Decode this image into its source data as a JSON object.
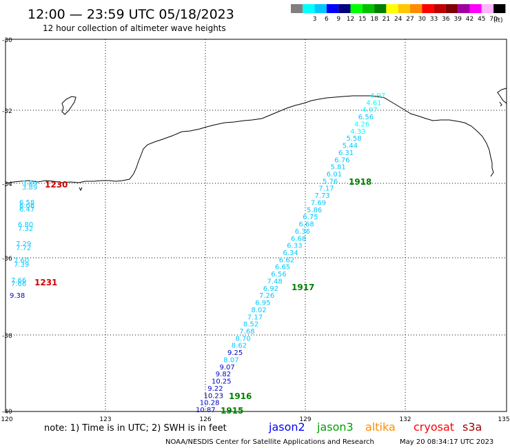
{
  "header": {
    "title": "12:00 — 23:59 UTC 05/18/2023",
    "subtitle": "12 hour collection of altimeter wave heights"
  },
  "color_scale": {
    "unit": "(ft)",
    "swatches": [
      {
        "color": "#808080",
        "label": ""
      },
      {
        "color": "#00ffff",
        "label": "3"
      },
      {
        "color": "#00c8ff",
        "label": "6"
      },
      {
        "color": "#0000ff",
        "label": "9"
      },
      {
        "color": "#000080",
        "label": "12"
      },
      {
        "color": "#00ff00",
        "label": "15"
      },
      {
        "color": "#00c000",
        "label": "18"
      },
      {
        "color": "#008000",
        "label": "21"
      },
      {
        "color": "#ffff00",
        "label": "24"
      },
      {
        "color": "#ffc800",
        "label": "27"
      },
      {
        "color": "#ff8c00",
        "label": "30"
      },
      {
        "color": "#ff0000",
        "label": "33"
      },
      {
        "color": "#c00000",
        "label": "36"
      },
      {
        "color": "#800000",
        "label": "39"
      },
      {
        "color": "#a000a0",
        "label": "42"
      },
      {
        "color": "#ff00ff",
        "label": "45"
      },
      {
        "color": "#ffb4ff",
        "label": "70"
      },
      {
        "color": "#000000",
        "label": ""
      }
    ]
  },
  "axes": {
    "lat_labels": [
      "-30",
      "-32",
      "-34",
      "-36",
      "-38",
      "-40"
    ],
    "lon_labels": [
      "120",
      "123",
      "126",
      "129",
      "132",
      "135"
    ]
  },
  "time_labels": [
    {
      "text": "1230",
      "color": "#d00000"
    },
    {
      "text": "1231",
      "color": "#d00000"
    },
    {
      "text": "1918",
      "color": "#008000"
    },
    {
      "text": "1917",
      "color": "#008000"
    },
    {
      "text": "1916",
      "color": "#008000"
    },
    {
      "text": "1915",
      "color": "#008000"
    }
  ],
  "track_a_values": [
    {
      "v": "3.89",
      "c": "#00c8ff"
    },
    {
      "v": "3.89",
      "c": "#00c8ff"
    },
    {
      "v": "6.58",
      "c": "#00c8ff"
    },
    {
      "v": "6.06",
      "c": "#00c8ff"
    },
    {
      "v": "6.47",
      "c": "#00c8ff"
    },
    {
      "v": "6.80",
      "c": "#00c8ff"
    },
    {
      "v": "7.32",
      "c": "#00c8ff"
    },
    {
      "v": "7.29",
      "c": "#00c8ff"
    },
    {
      "v": "7.72",
      "c": "#00c8ff"
    },
    {
      "v": "7.60",
      "c": "#00c8ff"
    },
    {
      "v": "7.39",
      "c": "#00c8ff"
    },
    {
      "v": "7.66",
      "c": "#00c8ff"
    },
    {
      "v": "7.66",
      "c": "#00c8ff"
    },
    {
      "v": "9.38",
      "c": "#0000c8"
    }
  ],
  "track_b_values": [
    {
      "v": "4.97",
      "c": "#00ffff"
    },
    {
      "v": "4.61",
      "c": "#00ffff"
    },
    {
      "v": "4.97",
      "c": "#00ffff"
    },
    {
      "v": "6.56",
      "c": "#00c8ff"
    },
    {
      "v": "4.26",
      "c": "#00ffff"
    },
    {
      "v": "4.33",
      "c": "#00ffff"
    },
    {
      "v": "5.58",
      "c": "#00c8ff"
    },
    {
      "v": "5.44",
      "c": "#00c8ff"
    },
    {
      "v": "6.31",
      "c": "#00c8ff"
    },
    {
      "v": "6.76",
      "c": "#00c8ff"
    },
    {
      "v": "5.81",
      "c": "#00c8ff"
    },
    {
      "v": "6.01",
      "c": "#00c8ff"
    },
    {
      "v": "5.76",
      "c": "#00c8ff"
    },
    {
      "v": "7.17",
      "c": "#00c8ff"
    },
    {
      "v": "7.73",
      "c": "#00c8ff"
    },
    {
      "v": "7.69",
      "c": "#00c8ff"
    },
    {
      "v": "5.86",
      "c": "#00c8ff"
    },
    {
      "v": "6.75",
      "c": "#00c8ff"
    },
    {
      "v": "6.68",
      "c": "#00c8ff"
    },
    {
      "v": "6.36",
      "c": "#00c8ff"
    },
    {
      "v": "6.68",
      "c": "#00c8ff"
    },
    {
      "v": "6.33",
      "c": "#00c8ff"
    },
    {
      "v": "6.34",
      "c": "#00c8ff"
    },
    {
      "v": "6.62",
      "c": "#00c8ff"
    },
    {
      "v": "6.65",
      "c": "#00c8ff"
    },
    {
      "v": "6.56",
      "c": "#00c8ff"
    },
    {
      "v": "7.48",
      "c": "#00c8ff"
    },
    {
      "v": "6.92",
      "c": "#00c8ff"
    },
    {
      "v": "7.26",
      "c": "#00c8ff"
    },
    {
      "v": "6.95",
      "c": "#00c8ff"
    },
    {
      "v": "8.02",
      "c": "#00c8ff"
    },
    {
      "v": "7.17",
      "c": "#00c8ff"
    },
    {
      "v": "8.52",
      "c": "#00c8ff"
    },
    {
      "v": "7.68",
      "c": "#00c8ff"
    },
    {
      "v": "8.70",
      "c": "#00c8ff"
    },
    {
      "v": "8.62",
      "c": "#00c8ff"
    },
    {
      "v": "9.25",
      "c": "#0000c8"
    },
    {
      "v": "8.07",
      "c": "#00c8ff"
    },
    {
      "v": "9.07",
      "c": "#0000c8"
    },
    {
      "v": "9.82",
      "c": "#0000c8"
    },
    {
      "v": "10.25",
      "c": "#0000c8"
    },
    {
      "v": "9.22",
      "c": "#0000c8"
    },
    {
      "v": "10.23",
      "c": "#000080"
    },
    {
      "v": "10.28",
      "c": "#0000c8"
    },
    {
      "v": "10.87",
      "c": "#0000c8"
    }
  ],
  "footer": {
    "note": "note:  1) Time is in UTC; 2) SWH is in feet",
    "legend": [
      {
        "label": "jason2",
        "color": "#0000ff"
      },
      {
        "label": "jason3",
        "color": "#00a000"
      },
      {
        "label": "altika",
        "color": "#ff8c00"
      },
      {
        "label": "cryosat",
        "color": "#ff0000"
      },
      {
        "label": "s3a",
        "color": "#a00000"
      }
    ],
    "credit": "NOAA/NESDIS Center for Satellite Applications and Research",
    "timestamp": "May 20 08:34:17 UTC 2023"
  }
}
